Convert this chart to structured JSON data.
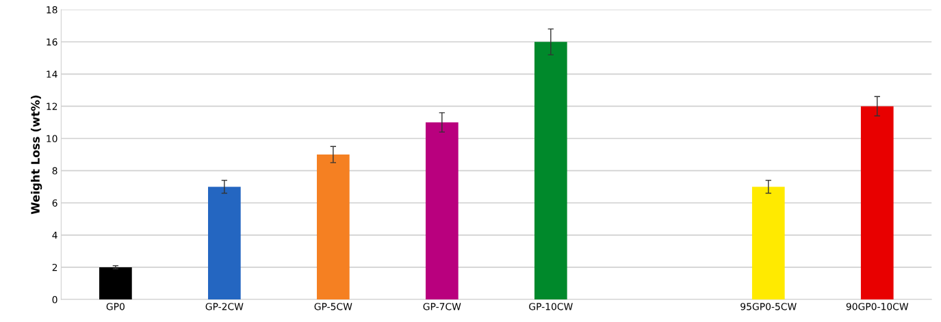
{
  "chart_data": {
    "type": "bar",
    "ylabel": "Weight Loss (wt%)",
    "categories": [
      "GP0",
      "GP-2CW",
      "GP-5CW",
      "GP-7CW",
      "GP-10CW",
      null,
      "95GP0-5CW",
      "90GP0-10CW"
    ],
    "values": [
      2,
      7,
      9,
      11,
      16,
      null,
      7,
      12
    ],
    "errors": [
      0.1,
      0.4,
      0.5,
      0.6,
      0.8,
      null,
      0.4,
      0.6
    ],
    "colors": [
      "#000000",
      "#2466c1",
      "#f58022",
      "#b9007e",
      "#00892b",
      "#ffffff",
      "#ffea00",
      "#e80000"
    ],
    "ylim": [
      0,
      18
    ],
    "yticks": [
      0,
      2,
      4,
      6,
      8,
      10,
      12,
      14,
      16,
      18
    ],
    "grid": "y"
  }
}
